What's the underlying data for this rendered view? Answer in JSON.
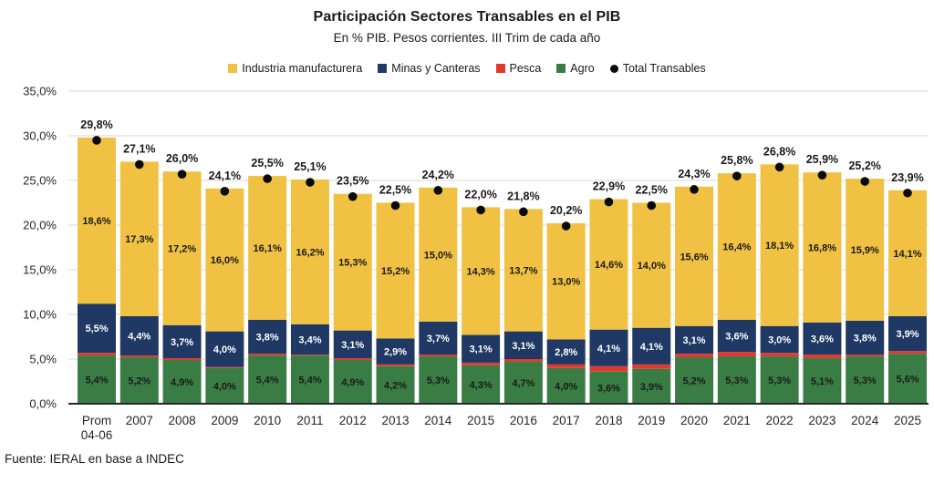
{
  "chart": {
    "title": "Participación Sectores Transables en el PIB",
    "subtitle": "En % PIB. Pesos corrientes. III Trim de cada año",
    "source": "Fuente: IERAL en base a INDEC"
  },
  "chart_data": {
    "type": "bar",
    "variant": "stacked-bars-with-total-markers",
    "title": "Participación Sectores Transables en el PIB",
    "subtitle": "En % PIB. Pesos corrientes. III Trim de cada año",
    "source": "Fuente: IERAL en base a INDEC",
    "xlabel": "",
    "ylabel": "",
    "ylim": [
      0,
      35
    ],
    "ytick_step": 5,
    "ytick_labels": [
      "0,0%",
      "5,0%",
      "10,0%",
      "15,0%",
      "20,0%",
      "25,0%",
      "30,0%",
      "35,0%"
    ],
    "grid": true,
    "legend_position": "top",
    "categories": [
      "Prom 04-06",
      "2007",
      "2008",
      "2009",
      "2010",
      "2011",
      "2012",
      "2013",
      "2014",
      "2015",
      "2016",
      "2017",
      "2018",
      "2019",
      "2020",
      "2021",
      "2022",
      "2023",
      "2024",
      "2025"
    ],
    "series": [
      {
        "name": "Agro",
        "color": "#3A7D44",
        "label_color": "#1a1a1a",
        "labeled": true,
        "values": [
          5.4,
          5.2,
          4.9,
          4.0,
          5.4,
          5.4,
          4.9,
          4.2,
          5.3,
          4.3,
          4.7,
          4.0,
          3.6,
          3.9,
          5.2,
          5.3,
          5.3,
          5.1,
          5.3,
          5.6
        ]
      },
      {
        "name": "Pesca",
        "color": "#E0392E",
        "label_color": "#1a1a1a",
        "labeled": false,
        "values": [
          0.3,
          0.2,
          0.2,
          0.1,
          0.2,
          0.1,
          0.2,
          0.2,
          0.2,
          0.3,
          0.3,
          0.4,
          0.6,
          0.5,
          0.4,
          0.5,
          0.4,
          0.4,
          0.2,
          0.3
        ]
      },
      {
        "name": "Minas y Canteras",
        "color": "#1F3864",
        "label_color": "#ffffff",
        "labeled": true,
        "values": [
          5.5,
          4.4,
          3.7,
          4.0,
          3.8,
          3.4,
          3.1,
          2.9,
          3.7,
          3.1,
          3.1,
          2.8,
          4.1,
          4.1,
          3.1,
          3.6,
          3.0,
          3.6,
          3.8,
          3.9
        ]
      },
      {
        "name": "Industria manufacturera",
        "color": "#F0C142",
        "label_color": "#1a1a1a",
        "labeled": true,
        "values": [
          18.6,
          17.3,
          17.2,
          16.0,
          16.1,
          16.2,
          15.3,
          15.2,
          15.0,
          14.3,
          13.7,
          13.0,
          14.6,
          14.0,
          15.6,
          16.4,
          18.1,
          16.8,
          15.9,
          14.1
        ]
      }
    ],
    "totals": {
      "name": "Total Transables",
      "marker": "dot",
      "color": "#0a0a0a",
      "values": [
        29.8,
        27.1,
        26.0,
        24.1,
        25.5,
        25.1,
        23.5,
        22.5,
        24.2,
        22.0,
        21.8,
        20.2,
        22.9,
        22.5,
        24.3,
        25.8,
        26.8,
        25.9,
        25.2,
        23.9
      ]
    },
    "legend": [
      {
        "label": "Industria manufacturera",
        "color": "#F0C142",
        "shape": "square"
      },
      {
        "label": "Minas y Canteras",
        "color": "#1F3864",
        "shape": "square"
      },
      {
        "label": "Pesca",
        "color": "#E0392E",
        "shape": "square"
      },
      {
        "label": "Agro",
        "color": "#3A7D44",
        "shape": "square"
      },
      {
        "label": "Total Transables",
        "color": "#0a0a0a",
        "shape": "dot"
      }
    ],
    "colors": {
      "grid": "#d9d9d9",
      "axis": "#262626",
      "text": "#262626"
    }
  }
}
